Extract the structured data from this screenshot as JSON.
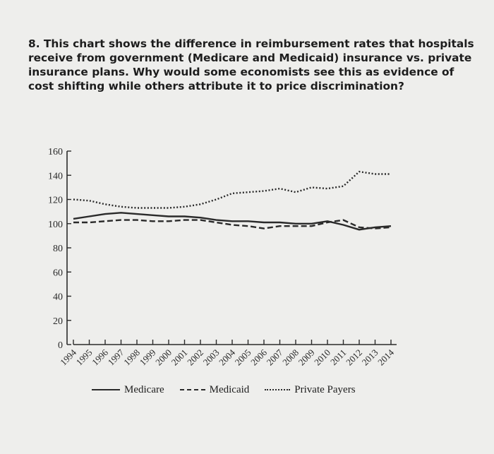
{
  "question": {
    "text": "8. This chart shows the difference in reimbursement rates that hospitals receive from government (Medicare and Medicaid) insurance vs. private insurance plans. Why would some economists see this as evidence of cost shifting while others attribute it to price discrimination?"
  },
  "chart_data": {
    "type": "line",
    "title": "",
    "xlabel": "",
    "ylabel": "",
    "ylim": [
      0,
      160
    ],
    "yticks": [
      0,
      20,
      40,
      60,
      80,
      100,
      120,
      140,
      160
    ],
    "grid": false,
    "legend_position": "bottom",
    "categories": [
      "1994",
      "1995",
      "1996",
      "1997",
      "1998",
      "1999",
      "2000",
      "2001",
      "2002",
      "2003",
      "2004",
      "2005",
      "2006",
      "2007",
      "2008",
      "2009",
      "2010",
      "2011",
      "2012",
      "2013",
      "2014"
    ],
    "series": [
      {
        "name": "Medicare",
        "style": "solid",
        "color": "#2a2a2a",
        "values": [
          104,
          106,
          108,
          109,
          108,
          107,
          106,
          106,
          105,
          103,
          102,
          102,
          101,
          101,
          100,
          100,
          102,
          99,
          95,
          97,
          98
        ]
      },
      {
        "name": "Medicaid",
        "style": "dashed",
        "color": "#2a2a2a",
        "values": [
          101,
          101,
          102,
          103,
          103,
          102,
          102,
          103,
          103,
          101,
          99,
          98,
          96,
          98,
          98,
          98,
          101,
          103,
          97,
          96,
          97
        ]
      },
      {
        "name": "Private Payers",
        "style": "dotted",
        "color": "#2a2a2a",
        "values": [
          120,
          119,
          116,
          114,
          113,
          113,
          113,
          114,
          116,
          120,
          125,
          126,
          127,
          129,
          126,
          130,
          129,
          131,
          143,
          141,
          141
        ]
      }
    ]
  }
}
